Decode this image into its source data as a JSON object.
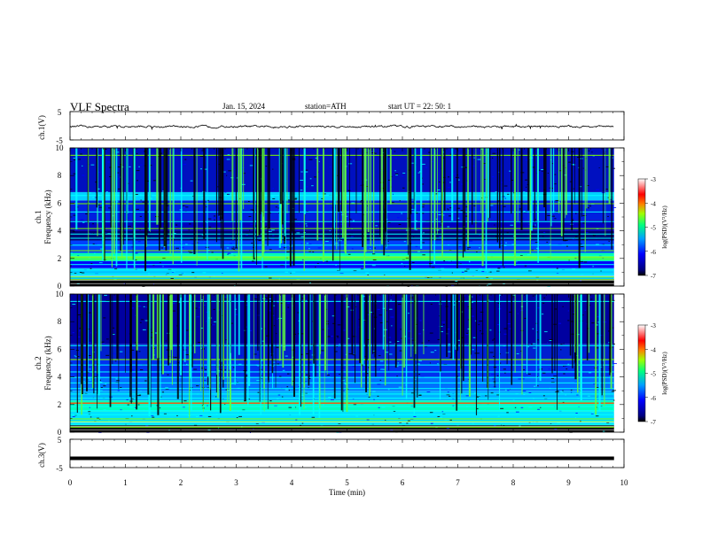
{
  "header": {
    "title": "VLF  Spectra",
    "date": "Jan. 15, 2024",
    "station": "station=ATH",
    "start": "start  UT  =    22: 50: 1"
  },
  "chart_data": [
    {
      "type": "line",
      "panel": "ch1-waveform",
      "ylabel": "ch.1(V)",
      "ylim": [
        -5,
        5
      ],
      "ytick_labels": [
        "5",
        "-5"
      ],
      "xlim": [
        0,
        10
      ],
      "x_end": 9.82,
      "series": [
        {
          "values_approx_mean": -0.3,
          "amplitude_approx": 0.7
        }
      ]
    },
    {
      "type": "heatmap",
      "panel": "ch1-spectrogram",
      "ylabel": "ch.1\nFrequency (kHz)",
      "ylim": [
        0,
        10
      ],
      "ytick_labels": [
        "0",
        "2",
        "4",
        "6",
        "8",
        "10"
      ],
      "xlim": [
        0,
        10
      ],
      "x_end": 9.82,
      "colorbar": {
        "label": "log(PSD)(V²/Hz)",
        "range": [
          -7,
          -3
        ],
        "tick_labels": [
          "-3",
          "-4",
          "-5",
          "-6",
          "-7"
        ]
      }
    },
    {
      "type": "heatmap",
      "panel": "ch2-spectrogram",
      "ylabel": "ch.2\nFrequency (kHz)",
      "ylim": [
        0,
        10
      ],
      "ytick_labels": [
        "0",
        "2",
        "4",
        "6",
        "8",
        "10"
      ],
      "xlim": [
        0,
        10
      ],
      "x_end": 9.82,
      "colorbar": {
        "label": "log(PSD)(V²/Hz)",
        "range": [
          -7,
          -3
        ],
        "tick_labels": [
          "-3",
          "-4",
          "-5",
          "-6",
          "-7"
        ]
      }
    },
    {
      "type": "line",
      "panel": "ch3-waveform",
      "ylabel": "ch.3(V)",
      "ylim": [
        -5,
        5
      ],
      "ytick_labels": [
        "5",
        "-5"
      ],
      "xlim": [
        0,
        10
      ],
      "x_end": 9.82,
      "series": [
        {
          "values_approx_mean": -1.7,
          "amplitude_approx": 0.1
        }
      ]
    }
  ],
  "x_axis": {
    "label": "Time  (min)",
    "tick_labels": [
      "0",
      "1",
      "2",
      "3",
      "4",
      "5",
      "6",
      "7",
      "8",
      "9",
      "10"
    ]
  }
}
